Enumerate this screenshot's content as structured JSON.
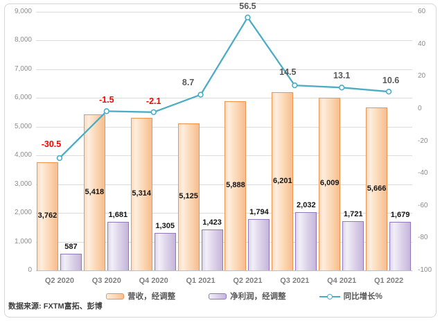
{
  "source_note": "数据来源: FXTM富拓、彭博",
  "colors": {
    "revenue_border": "#ef9450",
    "revenue_fill": "#fbd9b8",
    "profit_border": "#9279b9",
    "profit_fill": "#ddd4e9",
    "line": "#4bacc6",
    "line_label_negative": "#ff0000",
    "line_label_positive": "#595959",
    "axis_text": "#8c8c8c",
    "gridline": "#dcdcdc"
  },
  "chart_data": {
    "type": "bar",
    "subtype": "grouped-bars-with-line",
    "title": "",
    "categories": [
      "Q2 2020",
      "Q3 2020",
      "Q4 2020",
      "Q1 2021",
      "Q2 2021",
      "Q3 2021",
      "Q4 2021",
      "Q1 2022"
    ],
    "series": [
      {
        "name": "营收，经调整",
        "type": "bar",
        "axis": "left",
        "values": [
          3762,
          5418,
          5314,
          5125,
          5888,
          6201,
          6009,
          5666
        ]
      },
      {
        "name": "净利润，经调整",
        "type": "bar",
        "axis": "left",
        "values": [
          587,
          1681,
          1305,
          1423,
          1794,
          2032,
          1721,
          1679
        ]
      },
      {
        "name": "同比增长%",
        "type": "line",
        "axis": "right",
        "values": [
          -30.5,
          -1.5,
          -2.1,
          8.7,
          56.5,
          14.5,
          13.1,
          10.6
        ]
      }
    ],
    "left_axis": {
      "min": 0,
      "max": 9000,
      "step": 1000
    },
    "right_axis": {
      "min": -100,
      "max": 60,
      "step": 20
    },
    "grid": true,
    "legend_position": "bottom"
  }
}
